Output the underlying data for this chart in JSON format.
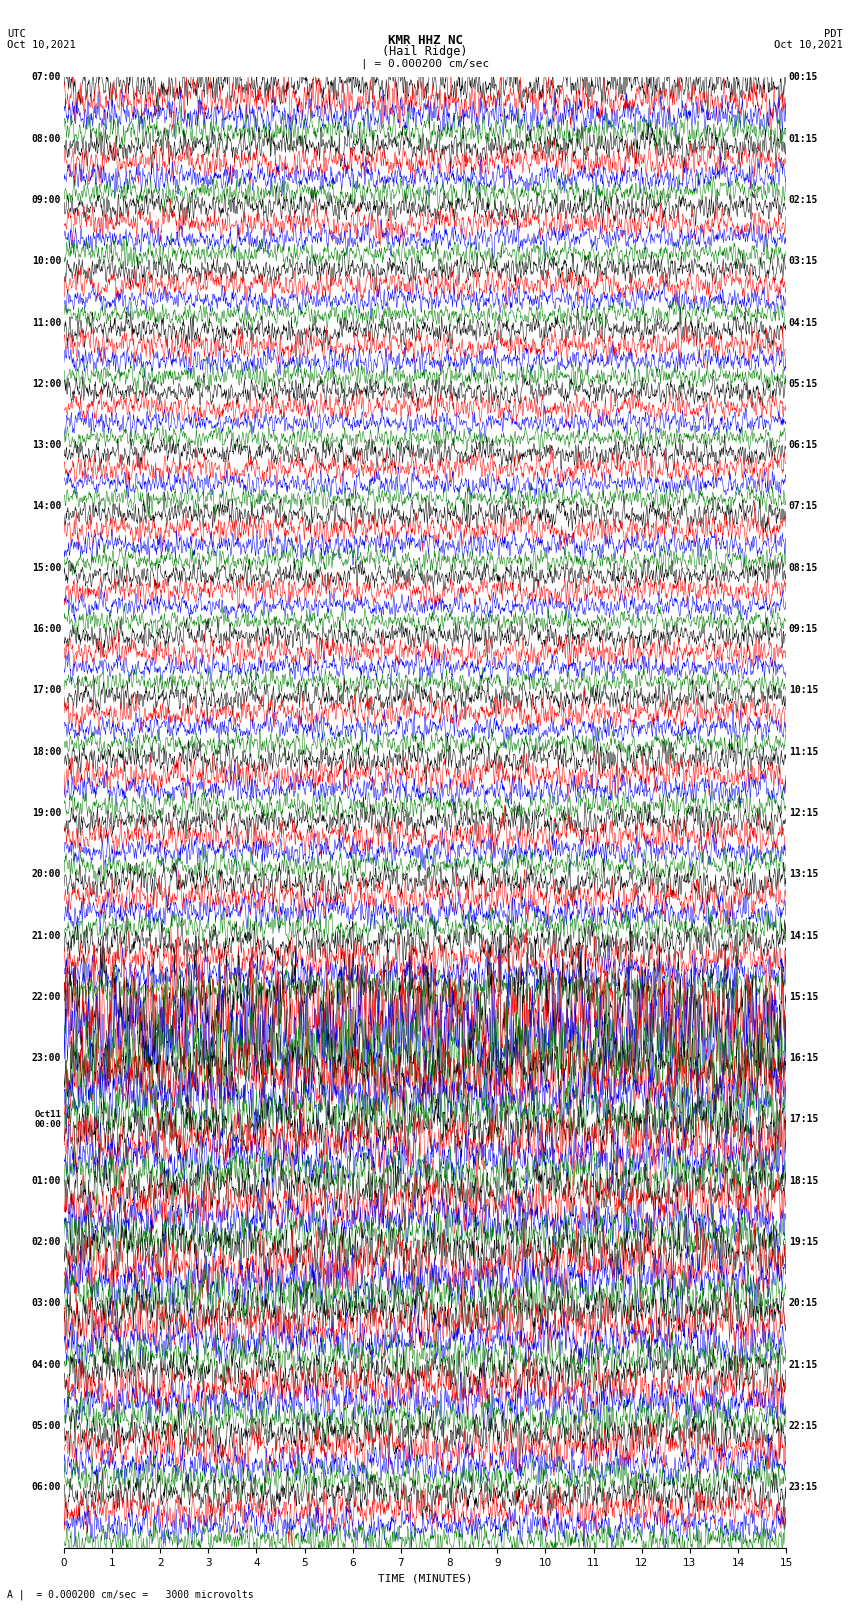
{
  "title_line1": "KMR HHZ NC",
  "title_line2": "(Hail Ridge)",
  "scale_text": "= 0.000200 cm/sec",
  "footer_text": "= 0.000200 cm/sec =   3000 microvolts",
  "utc_label": "UTC",
  "utc_date": "Oct 10,2021",
  "pdt_label": "PDT",
  "pdt_date": "Oct 10,2021",
  "xlabel": "TIME (MINUTES)",
  "x_ticks": [
    0,
    1,
    2,
    3,
    4,
    5,
    6,
    7,
    8,
    9,
    10,
    11,
    12,
    13,
    14,
    15
  ],
  "trace_colors_cycle": [
    "black",
    "red",
    "blue",
    "green"
  ],
  "num_groups": 24,
  "traces_per_group": 4,
  "left_times_utc": [
    "07:00",
    "08:00",
    "09:00",
    "10:00",
    "11:00",
    "12:00",
    "13:00",
    "14:00",
    "15:00",
    "16:00",
    "17:00",
    "18:00",
    "19:00",
    "20:00",
    "21:00",
    "22:00",
    "23:00",
    "Oct11\n00:00",
    "01:00",
    "02:00",
    "03:00",
    "04:00",
    "05:00",
    "06:00"
  ],
  "right_times_pdt": [
    "00:15",
    "01:15",
    "02:15",
    "03:15",
    "04:15",
    "05:15",
    "06:15",
    "07:15",
    "08:15",
    "09:15",
    "10:15",
    "11:15",
    "12:15",
    "13:15",
    "14:15",
    "15:15",
    "16:15",
    "17:15",
    "18:15",
    "19:15",
    "20:15",
    "21:15",
    "22:15",
    "23:15"
  ],
  "fig_width": 8.5,
  "fig_height": 16.13,
  "dpi": 100,
  "bg_color": "white",
  "trace_lw": 0.35,
  "seed": 12345
}
